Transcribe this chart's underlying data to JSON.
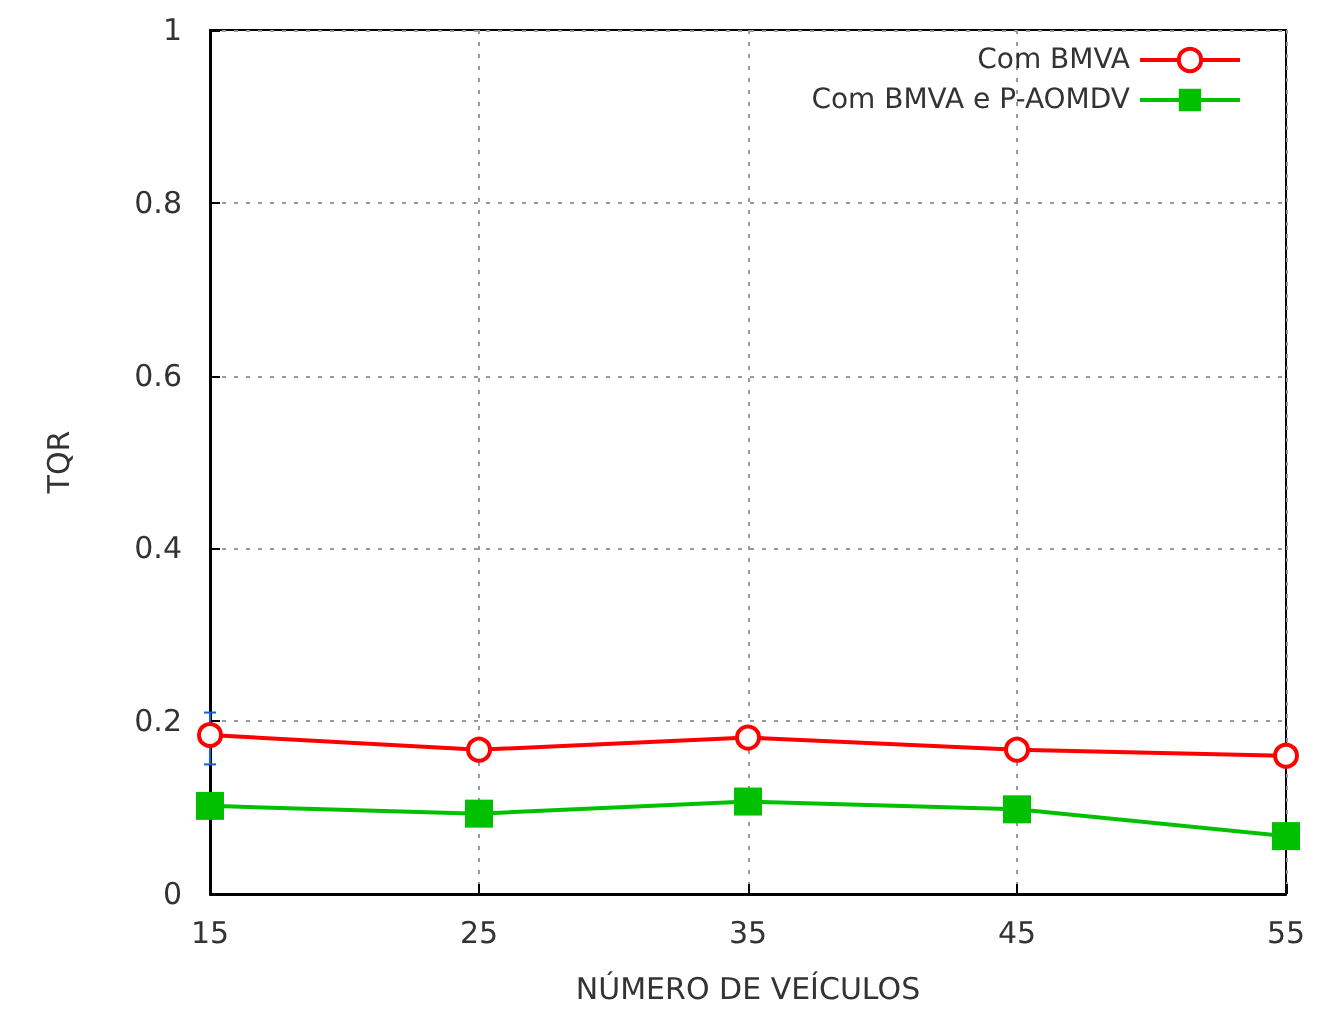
{
  "chart_data": {
    "type": "line",
    "xlabel": "NÚMERO DE VEÍCULOS",
    "ylabel": "TQR",
    "x": [
      15,
      25,
      35,
      45,
      55
    ],
    "series": [
      {
        "name": "Com BMVA",
        "color": "#ff0000",
        "marker": "circle",
        "values": [
          0.184,
          0.167,
          0.181,
          0.167,
          0.16
        ],
        "errors": [
          [
            0.15,
            0.21
          ],
          null,
          null,
          null,
          null
        ]
      },
      {
        "name": "Com BMVA e P-AOMDV",
        "color": "#00c000",
        "marker": "square",
        "values": [
          0.102,
          0.093,
          0.107,
          0.098,
          0.067
        ]
      }
    ],
    "xlim": [
      15,
      55
    ],
    "xticks": [
      15,
      25,
      35,
      45,
      55
    ],
    "ylim": [
      0,
      1
    ],
    "yticks": [
      0,
      0.2,
      0.4,
      0.6,
      0.8,
      1
    ],
    "grid": true,
    "legend": "top right",
    "line_style": "solid"
  }
}
